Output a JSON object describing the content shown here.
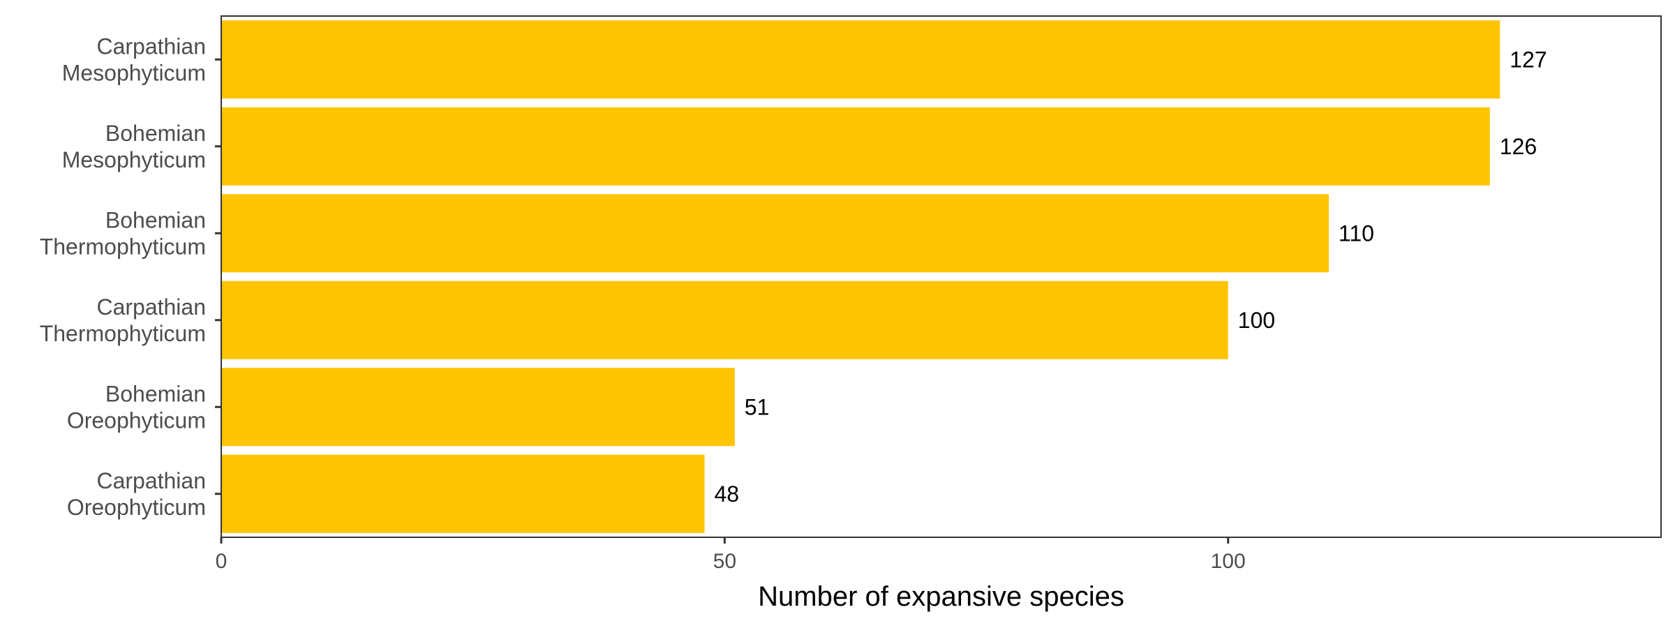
{
  "chart_data": {
    "type": "bar",
    "orientation": "horizontal",
    "categories": [
      [
        "Carpathian",
        "Mesophyticum"
      ],
      [
        "Bohemian",
        "Mesophyticum"
      ],
      [
        "Bohemian",
        "Thermophyticum"
      ],
      [
        "Carpathian",
        "Thermophyticum"
      ],
      [
        "Bohemian",
        "Oreophyticum"
      ],
      [
        "Carpathian",
        "Oreophyticum"
      ]
    ],
    "values": [
      127,
      126,
      110,
      100,
      51,
      48
    ],
    "value_labels": [
      "127",
      "126",
      "110",
      "100",
      "51",
      "48"
    ],
    "xlabel": "Number of expansive species",
    "ylabel": "",
    "title": "",
    "xlim": [
      0,
      143
    ],
    "xticks": [
      0,
      50,
      100
    ],
    "xtick_labels": [
      "0",
      "50",
      "100"
    ],
    "grid": false,
    "legend": "none",
    "bar_color": "#FFC400"
  }
}
